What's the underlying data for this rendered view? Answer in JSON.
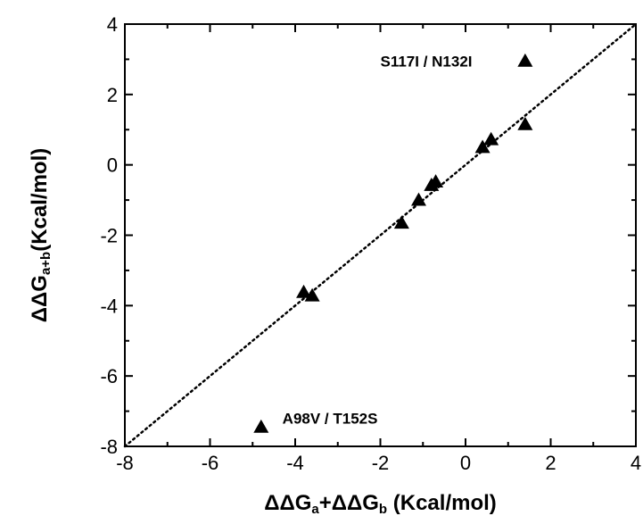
{
  "chart_data": {
    "type": "scatter",
    "title": "",
    "xlabel": {
      "parts": [
        {
          "text": "ΔΔG",
          "sub": false
        },
        {
          "text": "a",
          "sub": true
        },
        {
          "text": "+ΔΔG",
          "sub": false
        },
        {
          "text": "b",
          "sub": true
        },
        {
          "text": "  (Kcal/mol)",
          "sub": false
        }
      ]
    },
    "ylabel": {
      "parts": [
        {
          "text": "ΔΔG",
          "sub": false
        },
        {
          "text": "a+b",
          "sub": true
        },
        {
          "text": "(Kcal/mol)",
          "sub": false
        }
      ]
    },
    "xlim": [
      -8,
      4
    ],
    "ylim": [
      -8,
      4
    ],
    "xticks": [
      -8,
      -6,
      -4,
      -2,
      0,
      2,
      4
    ],
    "yticks": [
      -8,
      -6,
      -4,
      -2,
      0,
      2,
      4
    ],
    "grid": false,
    "marker": "triangle",
    "marker_color": "#000000",
    "reference_line": {
      "slope": 1,
      "intercept": 0,
      "style": "dotted"
    },
    "points": [
      {
        "x": 1.4,
        "y": 2.95
      },
      {
        "x": 1.4,
        "y": 1.15
      },
      {
        "x": 0.6,
        "y": 0.72
      },
      {
        "x": 0.4,
        "y": 0.5
      },
      {
        "x": -0.7,
        "y": -0.48
      },
      {
        "x": -0.8,
        "y": -0.58
      },
      {
        "x": -1.1,
        "y": -1.0
      },
      {
        "x": -1.5,
        "y": -1.65
      },
      {
        "x": -3.6,
        "y": -3.72
      },
      {
        "x": -3.8,
        "y": -3.62
      },
      {
        "x": -4.8,
        "y": -7.45
      }
    ],
    "annotations": [
      {
        "text": "S117I / N132I",
        "x": -2.0,
        "y": 2.8
      },
      {
        "text": "A98V / T152S",
        "x": -4.3,
        "y": -7.35
      }
    ]
  }
}
